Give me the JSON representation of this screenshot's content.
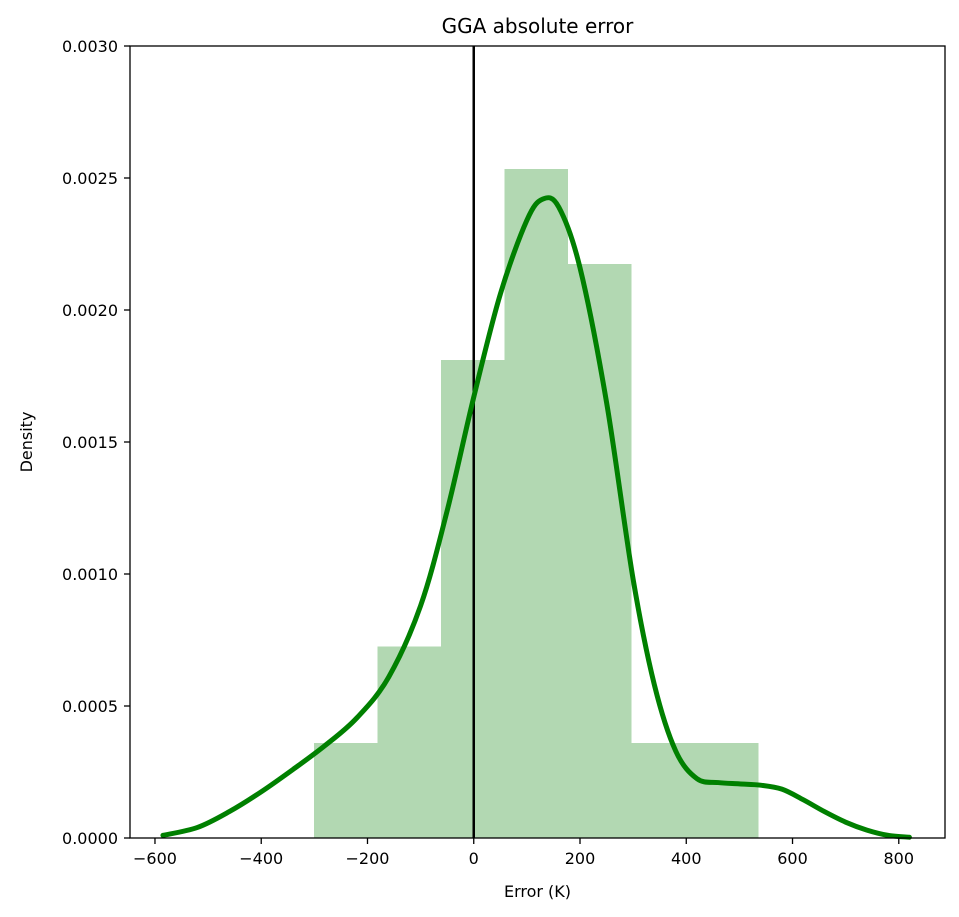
{
  "chart_data": {
    "type": "histogram",
    "title": "GGA absolute error",
    "xlabel": "Error (K)",
    "ylabel": "Density",
    "xlim": [
      -647,
      887
    ],
    "ylim": [
      0,
      0.003
    ],
    "xticks": [
      -600,
      -400,
      -200,
      0,
      200,
      400,
      600,
      800
    ],
    "xtick_labels": [
      "−600",
      "−400",
      "−200",
      "0",
      "200",
      "400",
      "600",
      "800"
    ],
    "yticks": [
      0,
      0.0005,
      0.001,
      0.0015,
      0.002,
      0.0025,
      0.003
    ],
    "ytick_labels": [
      "0.0000",
      "0.0005",
      "0.0010",
      "0.0015",
      "0.0020",
      "0.0025",
      "0.0030"
    ],
    "grid": false,
    "histogram": {
      "color": "#b2d8b2",
      "bins": [
        {
          "x0": -301,
          "x1": -181,
          "density": 0.00036
        },
        {
          "x0": -181,
          "x1": -62,
          "density": 0.000725
        },
        {
          "x0": -62,
          "x1": 58,
          "density": 0.00181
        },
        {
          "x0": 58,
          "x1": 177,
          "density": 0.002535
        },
        {
          "x0": 177,
          "x1": 297,
          "density": 0.002175
        },
        {
          "x0": 297,
          "x1": 417,
          "density": 0.00036
        },
        {
          "x0": 417,
          "x1": 536,
          "density": 0.00036
        }
      ]
    },
    "kde": {
      "color": "#008000",
      "x": [
        -585,
        -520,
        -460,
        -400,
        -340,
        -280,
        -220,
        -160,
        -100,
        -50,
        0,
        50,
        100,
        130,
        160,
        200,
        250,
        300,
        340,
        380,
        420,
        460,
        500,
        540,
        580,
        620,
        660,
        700,
        740,
        780,
        820
      ],
      "y": [
        1e-05,
        4e-05,
        0.0001,
        0.000175,
        0.00026,
        0.00035,
        0.000455,
        0.00061,
        0.00088,
        0.00124,
        0.00167,
        0.00206,
        0.00234,
        0.00242,
        0.00239,
        0.00216,
        0.00165,
        0.00098,
        0.00058,
        0.00033,
        0.000225,
        0.00021,
        0.000205,
        0.0002,
        0.000185,
        0.000145,
        0.0001,
        6e-05,
        3e-05,
        1e-05,
        3e-06
      ]
    },
    "vline": {
      "x": 0,
      "color": "#000000"
    }
  }
}
